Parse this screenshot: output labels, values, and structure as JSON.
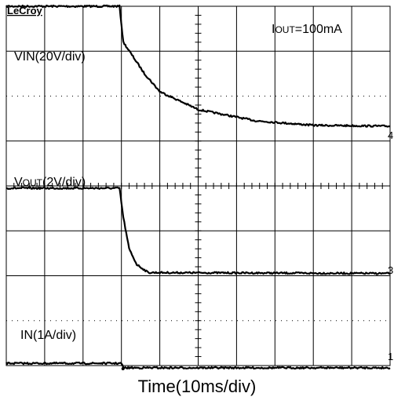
{
  "brand": "LeCroy",
  "condition": {
    "prefix": "I",
    "subscript": "OUT",
    "suffix": "=100mA"
  },
  "traces": [
    {
      "id": "vin",
      "label_main": "VIN",
      "label_sub": "",
      "label_scale": "(20V/div)",
      "marker": "4"
    },
    {
      "id": "vout",
      "label_main": "V",
      "label_sub": "OUT",
      "label_scale": "(2V/div)",
      "marker": "3"
    },
    {
      "id": "iin",
      "label_main": "IN",
      "label_sub": "",
      "label_scale": "(1A/div)",
      "marker": "1"
    }
  ],
  "time_label": "Time(10ms/div)",
  "colors": {
    "trace": "#000000",
    "grid": "#000000",
    "background": "#ffffff"
  },
  "chart_data": {
    "type": "line",
    "x_unit": "div",
    "xlim": [
      0,
      10
    ],
    "grid": {
      "x_divisions": 10,
      "y_divisions": 8
    },
    "series": [
      {
        "name": "VIN",
        "unit": "div",
        "x": [
          0,
          2.95,
          3.05,
          3.6,
          4.0,
          5.0,
          6.5,
          8.0,
          10.0
        ],
        "y": [
          8.0,
          8.0,
          7.2,
          6.5,
          6.1,
          5.7,
          5.45,
          5.35,
          5.33
        ]
      },
      {
        "name": "VOUT",
        "unit": "div",
        "x": [
          0,
          2.95,
          3.05,
          3.2,
          3.4,
          3.7,
          10.0
        ],
        "y": [
          3.95,
          3.95,
          3.3,
          2.6,
          2.25,
          2.07,
          2.05
        ]
      },
      {
        "name": "IIN",
        "unit": "div",
        "x": [
          0,
          3.0,
          3.05,
          10.0
        ],
        "y": [
          0.05,
          0.05,
          -0.05,
          -0.05
        ]
      }
    ]
  }
}
